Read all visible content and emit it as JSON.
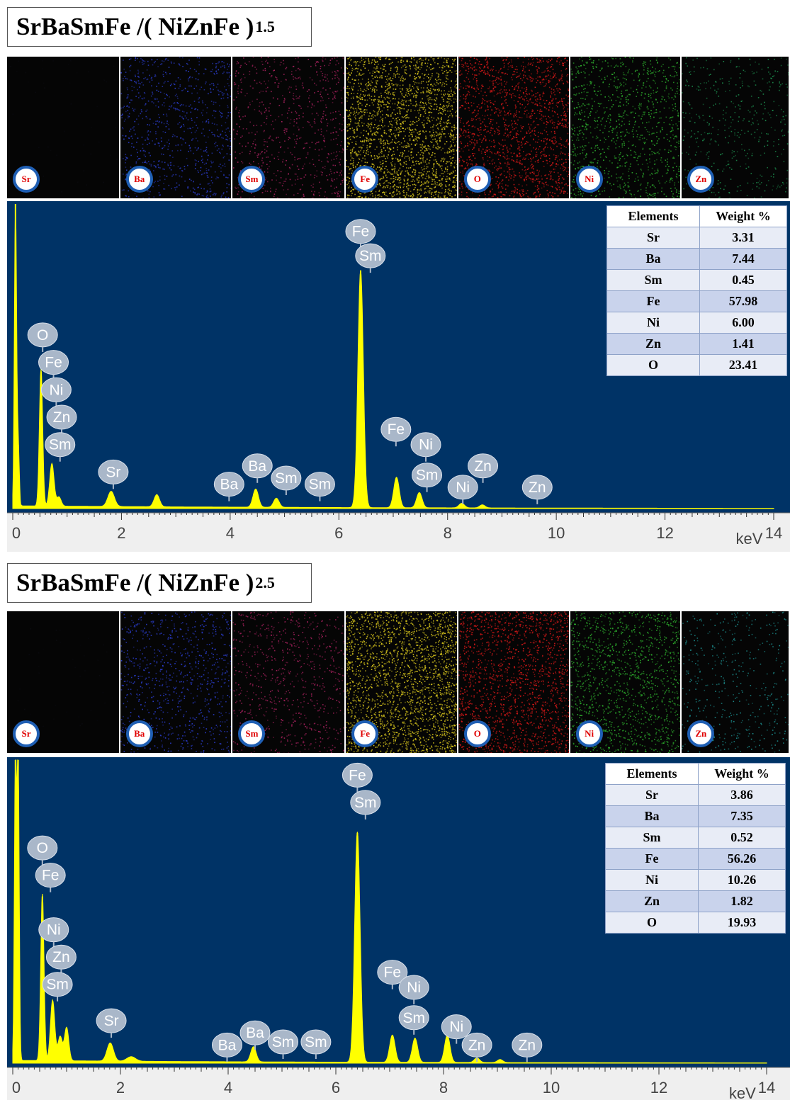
{
  "panels": [
    {
      "title_main": "SrBaSmFe /( NiZnFe )",
      "title_sub": "1.5",
      "maps": [
        {
          "label": "Sr",
          "color": "#0a0a10",
          "density": 0.02
        },
        {
          "label": "Ba",
          "color": "#2a3cc8",
          "density": 0.35
        },
        {
          "label": "Sm",
          "color": "#a0205a",
          "density": 0.3
        },
        {
          "label": "Fe",
          "color": "#d4c21c",
          "density": 0.95
        },
        {
          "label": "O",
          "color": "#d01818",
          "density": 0.7
        },
        {
          "label": "Ni",
          "color": "#2ca82c",
          "density": 0.45
        },
        {
          "label": "Zn",
          "color": "#1c8a4c",
          "density": 0.18
        }
      ],
      "table": {
        "headers": [
          "Elements",
          "Weight %"
        ],
        "rows": [
          {
            "element": "Sr",
            "weight": "3.31"
          },
          {
            "element": "Ba",
            "weight": "7.44"
          },
          {
            "element": "Sm",
            "weight": "0.45"
          },
          {
            "element": "Fe",
            "weight": "57.98"
          },
          {
            "element": "Ni",
            "weight": "6.00"
          },
          {
            "element": "Zn",
            "weight": "1.41"
          },
          {
            "element": "O",
            "weight": "23.41"
          }
        ]
      }
    },
    {
      "title_main": "SrBaSmFe /( NiZnFe )",
      "title_sub": "2.5",
      "maps": [
        {
          "label": "Sr",
          "color": "#0a0a10",
          "density": 0.02
        },
        {
          "label": "Ba",
          "color": "#2a3cc8",
          "density": 0.35
        },
        {
          "label": "Sm",
          "color": "#a0205a",
          "density": 0.3
        },
        {
          "label": "Fe",
          "color": "#d4c21c",
          "density": 0.95
        },
        {
          "label": "O",
          "color": "#d01818",
          "density": 0.7
        },
        {
          "label": "Ni",
          "color": "#2ca82c",
          "density": 0.55
        },
        {
          "label": "Zn",
          "color": "#1c8a8a",
          "density": 0.18
        }
      ],
      "table": {
        "headers": [
          "Elements",
          "Weight %"
        ],
        "rows": [
          {
            "element": "Sr",
            "weight": "3.86"
          },
          {
            "element": "Ba",
            "weight": "7.35"
          },
          {
            "element": "Sm",
            "weight": "0.52"
          },
          {
            "element": "Fe",
            "weight": "56.26"
          },
          {
            "element": "Ni",
            "weight": "10.26"
          },
          {
            "element": "Zn",
            "weight": "1.82"
          },
          {
            "element": "O",
            "weight": "19.93"
          }
        ]
      }
    }
  ],
  "chart_data": [
    {
      "type": "line",
      "xlabel": "keV",
      "xlim": [
        0,
        14
      ],
      "ylim": [
        0,
        100
      ],
      "xticks": [
        "0",
        "2",
        "4",
        "6",
        "8",
        "10",
        "12",
        "14"
      ],
      "grid": false,
      "background_color": "#003366",
      "line_color": "#ffff00",
      "peaks": [
        {
          "x": 0.05,
          "y": 100,
          "w": 0.02
        },
        {
          "x": 0.1,
          "y": 21,
          "w": 0.02
        },
        {
          "x": 0.52,
          "y": 45,
          "w": 0.03
        },
        {
          "x": 0.72,
          "y": 14,
          "w": 0.04
        },
        {
          "x": 0.85,
          "y": 3,
          "w": 0.04
        },
        {
          "x": 1.81,
          "y": 5,
          "w": 0.06
        },
        {
          "x": 2.65,
          "y": 4,
          "w": 0.05
        },
        {
          "x": 4.47,
          "y": 6,
          "w": 0.05
        },
        {
          "x": 4.85,
          "y": 3,
          "w": 0.05
        },
        {
          "x": 6.4,
          "y": 78,
          "w": 0.05
        },
        {
          "x": 7.06,
          "y": 10,
          "w": 0.05
        },
        {
          "x": 7.48,
          "y": 5,
          "w": 0.05
        },
        {
          "x": 8.26,
          "y": 1.5,
          "w": 0.05
        },
        {
          "x": 8.64,
          "y": 1,
          "w": 0.05
        }
      ],
      "annotations": [
        {
          "label": "Fe",
          "x": 6.4,
          "y": 91
        },
        {
          "label": "Sm",
          "x": 6.58,
          "y": 83
        },
        {
          "label": "O",
          "x": 0.55,
          "y": 57
        },
        {
          "label": "Fe",
          "x": 0.75,
          "y": 48
        },
        {
          "label": "Ni",
          "x": 0.8,
          "y": 39
        },
        {
          "label": "Zn",
          "x": 0.9,
          "y": 30
        },
        {
          "label": "Sm",
          "x": 0.87,
          "y": 21
        },
        {
          "label": "Sr",
          "x": 1.85,
          "y": 12
        },
        {
          "label": "Ba",
          "x": 3.98,
          "y": 8
        },
        {
          "label": "Ba",
          "x": 4.5,
          "y": 14
        },
        {
          "label": "Sm",
          "x": 5.03,
          "y": 10
        },
        {
          "label": "Sm",
          "x": 5.65,
          "y": 8
        },
        {
          "label": "Fe",
          "x": 7.05,
          "y": 26
        },
        {
          "label": "Ni",
          "x": 7.6,
          "y": 21
        },
        {
          "label": "Sm",
          "x": 7.62,
          "y": 11
        },
        {
          "label": "Ni",
          "x": 8.28,
          "y": 7
        },
        {
          "label": "Zn",
          "x": 8.65,
          "y": 14
        },
        {
          "label": "Zn",
          "x": 9.65,
          "y": 7
        }
      ]
    },
    {
      "type": "line",
      "xlabel": "keV",
      "xlim": [
        0,
        14
      ],
      "ylim": [
        0,
        100
      ],
      "xticks": [
        "0",
        "2",
        "4",
        "6",
        "8",
        "10",
        "12",
        "14"
      ],
      "grid": false,
      "background_color": "#003366",
      "line_color": "#ffff00",
      "peaks": [
        {
          "x": 0.05,
          "y": 100,
          "w": 0.02
        },
        {
          "x": 0.1,
          "y": 100,
          "w": 0.02
        },
        {
          "x": 0.55,
          "y": 55,
          "w": 0.03
        },
        {
          "x": 0.74,
          "y": 20,
          "w": 0.04
        },
        {
          "x": 0.88,
          "y": 8,
          "w": 0.04
        },
        {
          "x": 1.0,
          "y": 11,
          "w": 0.04
        },
        {
          "x": 1.81,
          "y": 6,
          "w": 0.06
        },
        {
          "x": 2.2,
          "y": 1.5,
          "w": 0.08
        },
        {
          "x": 4.47,
          "y": 5,
          "w": 0.05
        },
        {
          "x": 6.4,
          "y": 76,
          "w": 0.05
        },
        {
          "x": 7.05,
          "y": 9,
          "w": 0.05
        },
        {
          "x": 7.47,
          "y": 8,
          "w": 0.05
        },
        {
          "x": 8.07,
          "y": 9,
          "w": 0.05
        },
        {
          "x": 8.62,
          "y": 1.5,
          "w": 0.05
        },
        {
          "x": 9.05,
          "y": 1,
          "w": 0.05
        }
      ],
      "annotations": [
        {
          "label": "Fe",
          "x": 6.4,
          "y": 95
        },
        {
          "label": "Sm",
          "x": 6.55,
          "y": 86
        },
        {
          "label": "O",
          "x": 0.55,
          "y": 71
        },
        {
          "label": "Fe",
          "x": 0.7,
          "y": 62
        },
        {
          "label": "Ni",
          "x": 0.76,
          "y": 44
        },
        {
          "label": "Zn",
          "x": 0.9,
          "y": 35
        },
        {
          "label": "Sm",
          "x": 0.83,
          "y": 26
        },
        {
          "label": "Sr",
          "x": 1.83,
          "y": 14
        },
        {
          "label": "Ba",
          "x": 3.98,
          "y": 6
        },
        {
          "label": "Ba",
          "x": 4.5,
          "y": 10
        },
        {
          "label": "Sm",
          "x": 5.02,
          "y": 7
        },
        {
          "label": "Sm",
          "x": 5.63,
          "y": 7
        },
        {
          "label": "Fe",
          "x": 7.05,
          "y": 30
        },
        {
          "label": "Ni",
          "x": 7.45,
          "y": 25
        },
        {
          "label": "Sm",
          "x": 7.45,
          "y": 15
        },
        {
          "label": "Ni",
          "x": 8.24,
          "y": 12
        },
        {
          "label": "Zn",
          "x": 8.62,
          "y": 6
        },
        {
          "label": "Zn",
          "x": 9.55,
          "y": 6
        }
      ]
    }
  ]
}
